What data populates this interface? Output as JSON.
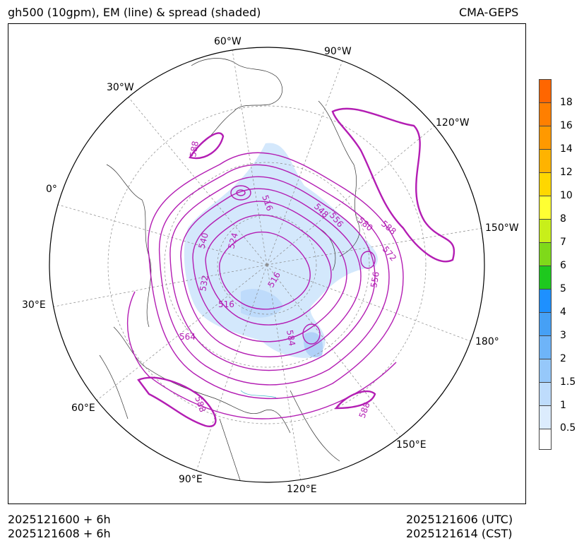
{
  "header": {
    "title": "gh500 (10gpm), EM (line) & spread (shaded)",
    "model": "CMA-GEPS"
  },
  "footer": {
    "init_utc": "2025121600 + 6h",
    "init_cst": "2025121608 + 6h",
    "valid_utc": "2025121606 (UTC)",
    "valid_cst": "2025121614 (CST)"
  },
  "map": {
    "projection": "north polar stereographic",
    "longitude_labels": [
      "60°W",
      "90°W",
      "30°W",
      "120°W",
      "0°",
      "150°W",
      "30°E",
      "180°",
      "60°E",
      "150°E",
      "90°E",
      "120°E"
    ],
    "contour_labels": [
      "588",
      "588",
      "588",
      "588",
      "564",
      "580",
      "572",
      "556",
      "556",
      "548",
      "516",
      "516",
      "516",
      "532",
      "540",
      "524",
      "584"
    ],
    "contour_color": "#b31db3",
    "coast_color": "#333333"
  },
  "colorbar": {
    "labels": [
      "18",
      "16",
      "14",
      "12",
      "10",
      "8",
      "7",
      "6",
      "5",
      "4",
      "3",
      "2",
      "1.5",
      "1",
      "0.5"
    ],
    "colors": [
      "#ff6600",
      "#ff7f00",
      "#ff9900",
      "#ffb300",
      "#ffd700",
      "#ffff33",
      "#c8ef1a",
      "#7fd91a",
      "#1ec81e",
      "#1e90ff",
      "#46a0f5",
      "#6eb4f8",
      "#96c8fa",
      "#bedcfc",
      "#dcecfd",
      "#ffffff"
    ]
  }
}
